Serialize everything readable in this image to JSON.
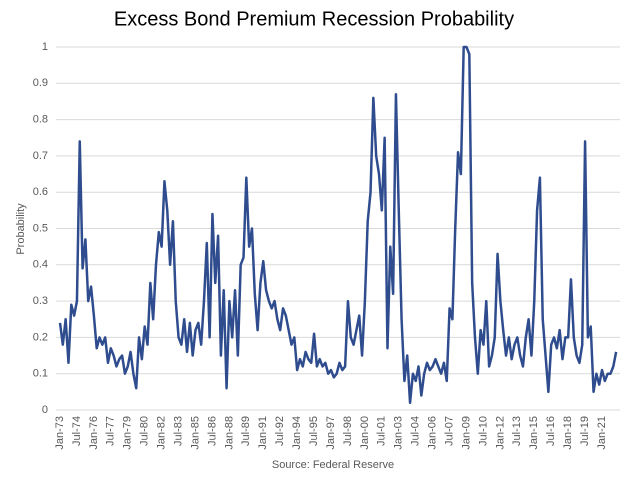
{
  "chart_data": {
    "type": "line",
    "title": "Excess Bond Premium Recession Probability",
    "y_label": "Probability",
    "source": "Source: Federal Reserve",
    "color": "#2f4d8e",
    "grid": true,
    "ylim": [
      0,
      1
    ],
    "yticks": [
      0,
      0.1,
      0.2,
      0.3,
      0.4,
      0.5,
      0.6,
      0.7,
      0.8,
      0.9,
      1
    ],
    "categories": [
      "Jan-73",
      null,
      null,
      null,
      null,
      null,
      "Jul-74",
      null,
      null,
      null,
      null,
      null,
      "Jan-76",
      null,
      null,
      null,
      null,
      null,
      "Jul-77",
      null,
      null,
      null,
      null,
      null,
      "Jan-79",
      null,
      null,
      null,
      null,
      null,
      "Jul-80",
      null,
      null,
      null,
      null,
      null,
      "Jan-82",
      null,
      null,
      null,
      null,
      null,
      "Jul-83",
      null,
      null,
      null,
      null,
      null,
      "Jan-85",
      null,
      null,
      null,
      null,
      null,
      "Jul-86",
      null,
      null,
      null,
      null,
      null,
      "Jan-88",
      null,
      null,
      null,
      null,
      null,
      "Jul-89",
      null,
      null,
      null,
      null,
      null,
      "Jan-91",
      null,
      null,
      null,
      null,
      null,
      "Jul-92",
      null,
      null,
      null,
      null,
      null,
      "Jan-94",
      null,
      null,
      null,
      null,
      null,
      "Jul-95",
      null,
      null,
      null,
      null,
      null,
      "Jan-97",
      null,
      null,
      null,
      null,
      null,
      "Jul-98",
      null,
      null,
      null,
      null,
      null,
      "Jan-00",
      null,
      null,
      null,
      null,
      null,
      "Jul-01",
      null,
      null,
      null,
      null,
      null,
      "Jan-03",
      null,
      null,
      null,
      null,
      null,
      "Jul-04",
      null,
      null,
      null,
      null,
      null,
      "Jan-06",
      null,
      null,
      null,
      null,
      null,
      "Jul-07",
      null,
      null,
      null,
      null,
      null,
      "Jan-09",
      null,
      null,
      null,
      null,
      null,
      "Jul-10",
      null,
      null,
      null,
      null,
      null,
      "Jan-12",
      null,
      null,
      null,
      null,
      null,
      "Jul-13",
      null,
      null,
      null,
      null,
      null,
      "Jan-15",
      null,
      null,
      null,
      null,
      null,
      "Jul-16",
      null,
      null,
      null,
      null,
      null,
      "Jan-18",
      null,
      null,
      null,
      null,
      null,
      "Jul-19",
      null,
      null,
      null,
      null,
      null,
      "Jan-21",
      null,
      null,
      null,
      null,
      null
    ],
    "values": [
      0.24,
      0.18,
      0.25,
      0.13,
      0.29,
      0.26,
      0.3,
      0.74,
      0.39,
      0.47,
      0.3,
      0.34,
      0.26,
      0.17,
      0.2,
      0.18,
      0.2,
      0.13,
      0.17,
      0.15,
      0.12,
      0.14,
      0.15,
      0.1,
      0.12,
      0.16,
      0.1,
      0.06,
      0.2,
      0.14,
      0.23,
      0.18,
      0.35,
      0.25,
      0.4,
      0.49,
      0.45,
      0.63,
      0.55,
      0.4,
      0.52,
      0.3,
      0.2,
      0.18,
      0.25,
      0.16,
      0.24,
      0.15,
      0.22,
      0.24,
      0.18,
      0.3,
      0.46,
      0.2,
      0.54,
      0.35,
      0.48,
      0.15,
      0.33,
      0.06,
      0.3,
      0.2,
      0.33,
      0.15,
      0.4,
      0.42,
      0.64,
      0.45,
      0.5,
      0.32,
      0.22,
      0.35,
      0.41,
      0.33,
      0.3,
      0.28,
      0.3,
      0.25,
      0.22,
      0.28,
      0.26,
      0.22,
      0.18,
      0.2,
      0.11,
      0.14,
      0.12,
      0.16,
      0.14,
      0.13,
      0.21,
      0.12,
      0.14,
      0.12,
      0.13,
      0.1,
      0.11,
      0.09,
      0.1,
      0.13,
      0.11,
      0.12,
      0.3,
      0.2,
      0.18,
      0.22,
      0.26,
      0.15,
      0.3,
      0.52,
      0.6,
      0.86,
      0.7,
      0.65,
      0.55,
      0.75,
      0.17,
      0.45,
      0.32,
      0.87,
      0.55,
      0.25,
      0.08,
      0.15,
      0.02,
      0.1,
      0.08,
      0.12,
      0.04,
      0.1,
      0.13,
      0.11,
      0.12,
      0.14,
      0.12,
      0.1,
      0.13,
      0.08,
      0.28,
      0.25,
      0.5,
      0.71,
      0.65,
      1,
      1,
      0.98,
      0.35,
      0.2,
      0.1,
      0.22,
      0.18,
      0.3,
      0.12,
      0.15,
      0.2,
      0.43,
      0.3,
      0.22,
      0.15,
      0.2,
      0.14,
      0.18,
      0.2,
      0.15,
      0.12,
      0.2,
      0.25,
      0.15,
      0.3,
      0.55,
      0.64,
      0.25,
      0.15,
      0.05,
      0.18,
      0.2,
      0.17,
      0.22,
      0.14,
      0.2,
      0.2,
      0.36,
      0.2,
      0.15,
      0.13,
      0.18,
      0.74,
      0.2,
      0.23,
      0.05,
      0.1,
      0.07,
      0.11,
      0.08,
      0.1,
      0.1,
      0.12,
      0.16
    ]
  }
}
